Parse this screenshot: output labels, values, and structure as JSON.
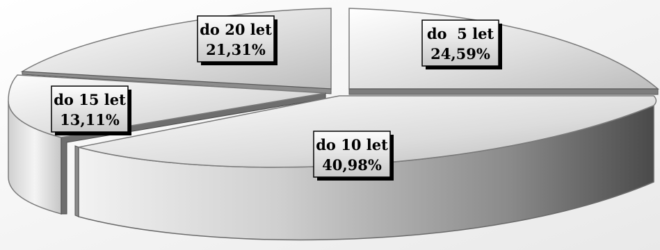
{
  "chart_data": {
    "type": "pie",
    "title": "",
    "style": "3d-exploded",
    "slices": [
      {
        "label": "do  5 let",
        "value": 24.59,
        "value_text": "24,59%",
        "color": "#d9d9d9"
      },
      {
        "label": "do 10 let",
        "value": 40.98,
        "value_text": "40,98%",
        "color": "#c8c8c8"
      },
      {
        "label": "do 15 let",
        "value": 13.11,
        "value_text": "13,11%",
        "color": "#e0e0e0"
      },
      {
        "label": "do 20 let",
        "value": 21.31,
        "value_text": "21,31%",
        "color": "#ececec"
      }
    ],
    "legend": "none"
  }
}
